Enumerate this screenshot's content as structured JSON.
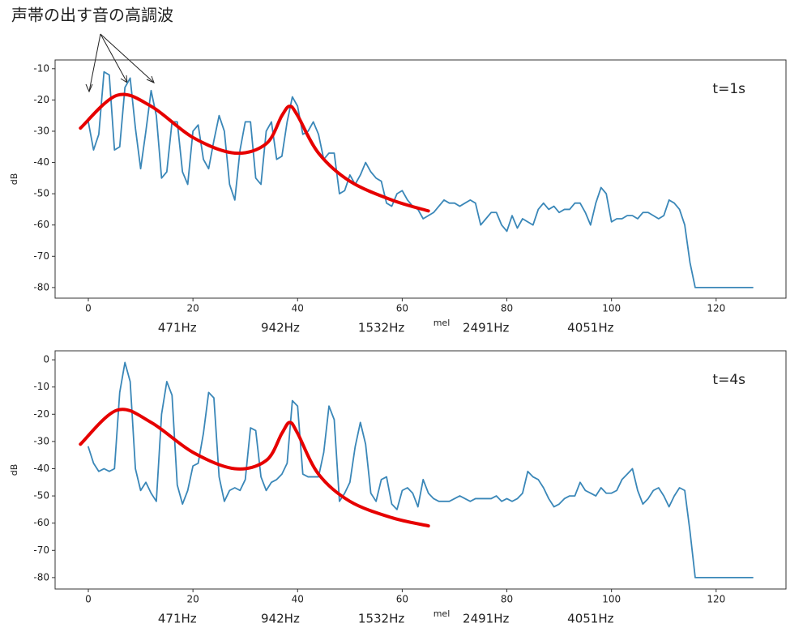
{
  "annotation": "声帯の出す音の高調波",
  "chart_data": [
    {
      "type": "line",
      "xlabel": "mel",
      "ylabel": "dB",
      "annotation": "t=1s",
      "xlim": [
        -6.35,
        133.35
      ],
      "ylim": [
        -83.4,
        -7.2
      ],
      "xticks": [
        0,
        20,
        40,
        60,
        80,
        100,
        120
      ],
      "yticks": [
        -80,
        -70,
        -60,
        -50,
        -40,
        -30,
        -20,
        -10
      ],
      "secondary_xlabels": [
        {
          "value": 17,
          "label": "471Hz"
        },
        {
          "value": 36.7,
          "label": "942Hz"
        },
        {
          "value": 56,
          "label": "1532Hz"
        },
        {
          "value": 76,
          "label": "2491Hz"
        },
        {
          "value": 96,
          "label": "4051Hz"
        }
      ],
      "x": [
        0,
        1,
        2,
        3,
        4,
        5,
        6,
        7,
        8,
        9,
        10,
        11,
        12,
        13,
        14,
        15,
        16,
        17,
        18,
        19,
        20,
        21,
        22,
        23,
        24,
        25,
        26,
        27,
        28,
        29,
        30,
        31,
        32,
        33,
        34,
        35,
        36,
        37,
        38,
        39,
        40,
        41,
        42,
        43,
        44,
        45,
        46,
        47,
        48,
        49,
        50,
        51,
        52,
        53,
        54,
        55,
        56,
        57,
        58,
        59,
        60,
        61,
        62,
        63,
        64,
        65,
        66,
        67,
        68,
        69,
        70,
        71,
        72,
        73,
        74,
        75,
        76,
        77,
        78,
        79,
        80,
        81,
        82,
        83,
        84,
        85,
        86,
        87,
        88,
        89,
        90,
        91,
        92,
        93,
        94,
        95,
        96,
        97,
        98,
        99,
        100,
        101,
        102,
        103,
        104,
        105,
        106,
        107,
        108,
        109,
        110,
        111,
        112,
        113,
        114,
        115,
        116,
        117,
        118,
        119,
        120,
        121,
        122,
        123,
        124,
        125,
        126,
        127
      ],
      "series": [
        {
          "color": "#3a87b8",
          "values": [
            -27,
            -36,
            -31,
            -11,
            -12,
            -36,
            -35,
            -16,
            -13,
            -29,
            -42,
            -30,
            -17,
            -25,
            -45,
            -43,
            -27,
            -27,
            -43,
            -47,
            -30,
            -28,
            -39,
            -42,
            -33,
            -25,
            -30,
            -47,
            -52,
            -36,
            -27,
            -27,
            -45,
            -47,
            -30,
            -27,
            -39,
            -38,
            -27,
            -19,
            -22,
            -31,
            -30,
            -27,
            -31,
            -39,
            -37,
            -37,
            -50,
            -49,
            -44,
            -47,
            -44,
            -40,
            -43,
            -45,
            -46,
            -53,
            -54,
            -50,
            -49,
            -52,
            -54,
            -55,
            -58,
            -57,
            -56,
            -54,
            -52,
            -53,
            -53,
            -54,
            -53,
            -52,
            -53,
            -60,
            -58,
            -56,
            -56,
            -60,
            -62,
            -57,
            -61,
            -58,
            -59,
            -60,
            -55,
            -53,
            -55,
            -54,
            -56,
            -55,
            -55,
            -53,
            -53,
            -56,
            -60,
            -53,
            -48,
            -50,
            -59,
            -58,
            -58,
            -57,
            -57,
            -58,
            -56,
            -56,
            -57,
            -58,
            -57,
            -52,
            -53,
            -55,
            -60,
            -72,
            -80,
            -80,
            -80,
            -80,
            -80,
            -80,
            -80,
            -80,
            -80,
            -80,
            -80,
            -80
          ]
        },
        {
          "color": "#e60000",
          "x": [
            -1.5,
            5.5,
            12,
            20,
            28,
            34,
            37,
            38.5,
            40,
            44,
            50,
            58,
            65
          ],
          "values": [
            -29,
            -18.5,
            -22,
            -32,
            -37,
            -34,
            -25,
            -22,
            -25,
            -37,
            -46,
            -52,
            -55.5
          ]
        }
      ]
    },
    {
      "type": "line",
      "xlabel": "mel",
      "ylabel": "dB",
      "annotation": "t=4s",
      "xlim": [
        -6.35,
        133.35
      ],
      "ylim": [
        -84.2,
        3.3
      ],
      "xticks": [
        0,
        20,
        40,
        60,
        80,
        100,
        120
      ],
      "yticks": [
        -80,
        -70,
        -60,
        -50,
        -40,
        -30,
        -20,
        -10,
        0
      ],
      "secondary_xlabels": [
        {
          "value": 17,
          "label": "471Hz"
        },
        {
          "value": 36.7,
          "label": "942Hz"
        },
        {
          "value": 56,
          "label": "1532Hz"
        },
        {
          "value": 76,
          "label": "2491Hz"
        },
        {
          "value": 96,
          "label": "4051Hz"
        }
      ],
      "x": [
        0,
        1,
        2,
        3,
        4,
        5,
        6,
        7,
        8,
        9,
        10,
        11,
        12,
        13,
        14,
        15,
        16,
        17,
        18,
        19,
        20,
        21,
        22,
        23,
        24,
        25,
        26,
        27,
        28,
        29,
        30,
        31,
        32,
        33,
        34,
        35,
        36,
        37,
        38,
        39,
        40,
        41,
        42,
        43,
        44,
        45,
        46,
        47,
        48,
        49,
        50,
        51,
        52,
        53,
        54,
        55,
        56,
        57,
        58,
        59,
        60,
        61,
        62,
        63,
        64,
        65,
        66,
        67,
        68,
        69,
        70,
        71,
        72,
        73,
        74,
        75,
        76,
        77,
        78,
        79,
        80,
        81,
        82,
        83,
        84,
        85,
        86,
        87,
        88,
        89,
        90,
        91,
        92,
        93,
        94,
        95,
        96,
        97,
        98,
        99,
        100,
        101,
        102,
        103,
        104,
        105,
        106,
        107,
        108,
        109,
        110,
        111,
        112,
        113,
        114,
        115,
        116,
        117,
        118,
        119,
        120,
        121,
        122,
        123,
        124,
        125,
        126,
        127
      ],
      "series": [
        {
          "color": "#3a87b8",
          "values": [
            -32,
            -38,
            -41,
            -40,
            -41,
            -40,
            -12,
            -1,
            -8,
            -40,
            -48,
            -45,
            -49,
            -52,
            -20,
            -8,
            -13,
            -46,
            -53,
            -48,
            -39,
            -38,
            -27,
            -12,
            -14,
            -43,
            -52,
            -48,
            -47,
            -48,
            -44,
            -25,
            -26,
            -43,
            -48,
            -45,
            -44,
            -42,
            -38,
            -15,
            -17,
            -42,
            -43,
            -43,
            -43,
            -34,
            -17,
            -22,
            -52,
            -49,
            -45,
            -32,
            -23,
            -31,
            -49,
            -52,
            -44,
            -43,
            -53,
            -55,
            -48,
            -47,
            -49,
            -54,
            -44,
            -49,
            -51,
            -52,
            -52,
            -52,
            -51,
            -50,
            -51,
            -52,
            -51,
            -51,
            -51,
            -51,
            -50,
            -52,
            -51,
            -52,
            -51,
            -49,
            -41,
            -43,
            -44,
            -47,
            -51,
            -54,
            -53,
            -51,
            -50,
            -50,
            -45,
            -48,
            -49,
            -50,
            -47,
            -49,
            -49,
            -48,
            -44,
            -42,
            -40,
            -48,
            -53,
            -51,
            -48,
            -47,
            -50,
            -54,
            -50,
            -47,
            -48,
            -63,
            -80,
            -80,
            -80,
            -80,
            -80,
            -80,
            -80,
            -80,
            -80,
            -80,
            -80,
            -80
          ]
        },
        {
          "color": "#e60000",
          "x": [
            -1.5,
            5.5,
            12,
            20,
            28,
            34,
            37,
            38.5,
            40,
            44,
            50,
            58,
            65
          ],
          "values": [
            -31,
            -18.5,
            -23,
            -34,
            -40,
            -37,
            -27,
            -23,
            -27,
            -42,
            -52,
            -58,
            -61
          ]
        }
      ]
    }
  ]
}
